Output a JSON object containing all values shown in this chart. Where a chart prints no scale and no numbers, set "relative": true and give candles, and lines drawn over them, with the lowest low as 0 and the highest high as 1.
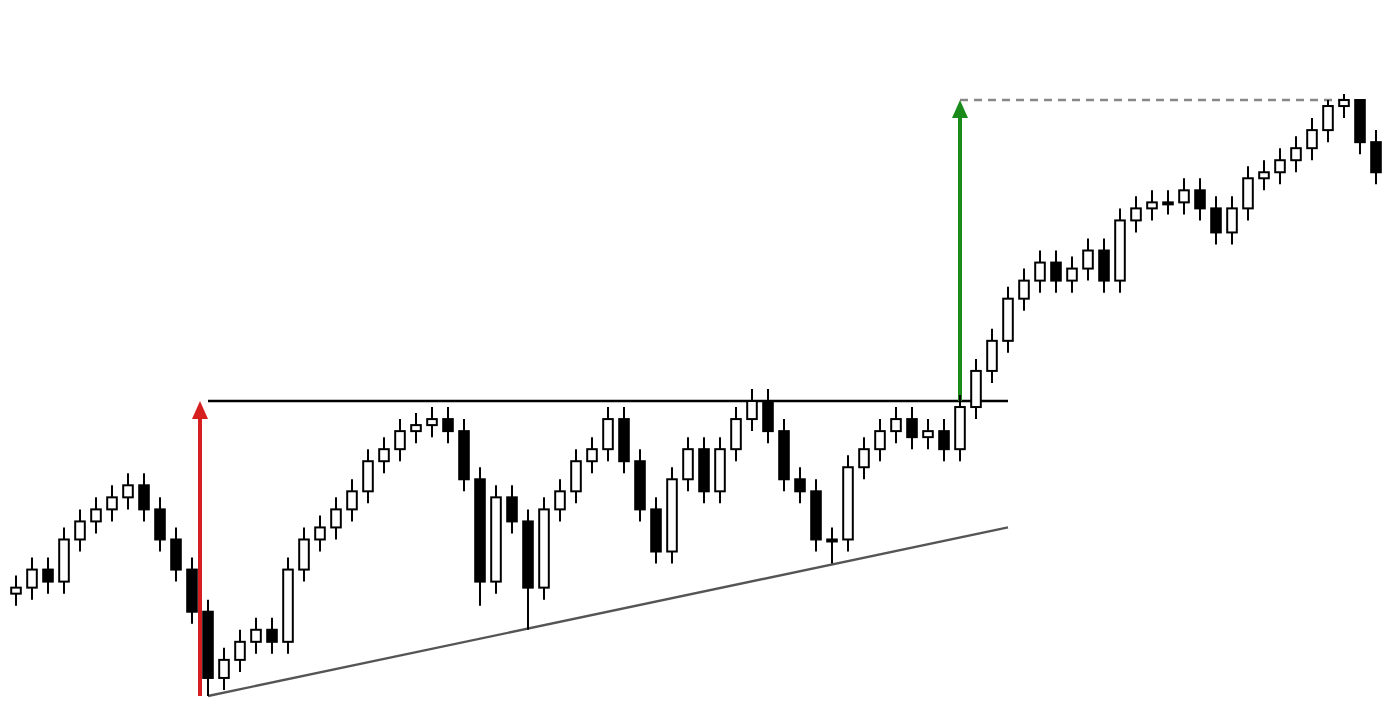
{
  "chart_data": {
    "type": "candlestick",
    "relative": true,
    "color": "#000000",
    "categories": [
      null,
      null,
      null,
      null,
      null,
      null,
      null,
      null,
      null,
      null,
      null,
      null,
      null,
      null,
      null,
      null,
      null,
      null,
      null,
      null,
      null,
      null,
      null,
      null,
      null,
      null,
      null,
      null,
      null,
      null,
      null,
      null,
      null,
      null,
      null,
      null,
      null,
      null,
      null,
      null,
      null,
      null,
      null,
      null,
      null,
      null,
      null,
      null,
      null,
      null,
      null,
      null,
      null,
      null,
      null,
      null,
      null,
      null,
      null,
      null,
      null,
      null,
      null,
      null,
      null,
      null,
      null,
      null,
      null,
      null,
      null,
      null,
      null,
      null,
      null,
      null,
      null,
      null,
      null,
      null,
      null,
      null,
      null,
      null,
      null,
      null
    ],
    "ohlc": [
      [
        0.17,
        0.2,
        0.15,
        0.18
      ],
      [
        0.18,
        0.23,
        0.16,
        0.21
      ],
      [
        0.21,
        0.23,
        0.17,
        0.19
      ],
      [
        0.19,
        0.28,
        0.17,
        0.26
      ],
      [
        0.26,
        0.31,
        0.24,
        0.29
      ],
      [
        0.29,
        0.33,
        0.27,
        0.31
      ],
      [
        0.31,
        0.35,
        0.29,
        0.33
      ],
      [
        0.33,
        0.37,
        0.31,
        0.35
      ],
      [
        0.35,
        0.37,
        0.29,
        0.31
      ],
      [
        0.31,
        0.33,
        0.24,
        0.26
      ],
      [
        0.26,
        0.28,
        0.19,
        0.21
      ],
      [
        0.21,
        0.23,
        0.12,
        0.14
      ],
      [
        0.14,
        0.16,
        0,
        0.03
      ],
      [
        0.03,
        0.08,
        0.01,
        0.06
      ],
      [
        0.06,
        0.11,
        0.04,
        0.09
      ],
      [
        0.09,
        0.13,
        0.07,
        0.11
      ],
      [
        0.11,
        0.13,
        0.07,
        0.09
      ],
      [
        0.09,
        0.23,
        0.07,
        0.21
      ],
      [
        0.21,
        0.28,
        0.19,
        0.26
      ],
      [
        0.26,
        0.3,
        0.24,
        0.28
      ],
      [
        0.28,
        0.33,
        0.26,
        0.31
      ],
      [
        0.31,
        0.36,
        0.29,
        0.34
      ],
      [
        0.34,
        0.41,
        0.32,
        0.39
      ],
      [
        0.39,
        0.43,
        0.37,
        0.41
      ],
      [
        0.41,
        0.46,
        0.39,
        0.44
      ],
      [
        0.44,
        0.47,
        0.42,
        0.45
      ],
      [
        0.45,
        0.48,
        0.43,
        0.46
      ],
      [
        0.46,
        0.48,
        0.42,
        0.44
      ],
      [
        0.44,
        0.46,
        0.34,
        0.36
      ],
      [
        0.36,
        0.38,
        0.15,
        0.19
      ],
      [
        0.19,
        0.35,
        0.17,
        0.33
      ],
      [
        0.33,
        0.35,
        0.27,
        0.29
      ],
      [
        0.29,
        0.31,
        0.11,
        0.18
      ],
      [
        0.18,
        0.33,
        0.16,
        0.31
      ],
      [
        0.31,
        0.36,
        0.29,
        0.34
      ],
      [
        0.34,
        0.41,
        0.32,
        0.39
      ],
      [
        0.39,
        0.43,
        0.37,
        0.41
      ],
      [
        0.41,
        0.48,
        0.39,
        0.46
      ],
      [
        0.46,
        0.48,
        0.37,
        0.39
      ],
      [
        0.39,
        0.41,
        0.29,
        0.31
      ],
      [
        0.31,
        0.33,
        0.22,
        0.24
      ],
      [
        0.24,
        0.38,
        0.22,
        0.36
      ],
      [
        0.36,
        0.43,
        0.34,
        0.41
      ],
      [
        0.41,
        0.43,
        0.32,
        0.34
      ],
      [
        0.34,
        0.43,
        0.32,
        0.41
      ],
      [
        0.41,
        0.48,
        0.39,
        0.46
      ],
      [
        0.46,
        0.51,
        0.44,
        0.49
      ],
      [
        0.49,
        0.51,
        0.42,
        0.44
      ],
      [
        0.44,
        0.46,
        0.34,
        0.36
      ],
      [
        0.36,
        0.38,
        0.32,
        0.34
      ],
      [
        0.34,
        0.36,
        0.24,
        0.26
      ],
      [
        0.26,
        0.28,
        0.22,
        0.26
      ],
      [
        0.26,
        0.4,
        0.24,
        0.38
      ],
      [
        0.38,
        0.43,
        0.36,
        0.41
      ],
      [
        0.41,
        0.46,
        0.39,
        0.44
      ],
      [
        0.44,
        0.48,
        0.42,
        0.46
      ],
      [
        0.46,
        0.48,
        0.41,
        0.43
      ],
      [
        0.43,
        0.46,
        0.41,
        0.44
      ],
      [
        0.44,
        0.46,
        0.39,
        0.41
      ],
      [
        0.41,
        0.5,
        0.39,
        0.48
      ],
      [
        0.48,
        0.56,
        0.46,
        0.54
      ],
      [
        0.54,
        0.61,
        0.52,
        0.59
      ],
      [
        0.59,
        0.68,
        0.57,
        0.66
      ],
      [
        0.66,
        0.71,
        0.64,
        0.69
      ],
      [
        0.69,
        0.74,
        0.67,
        0.72
      ],
      [
        0.72,
        0.74,
        0.67,
        0.69
      ],
      [
        0.69,
        0.73,
        0.67,
        0.71
      ],
      [
        0.71,
        0.76,
        0.69,
        0.74
      ],
      [
        0.74,
        0.76,
        0.67,
        0.69
      ],
      [
        0.69,
        0.81,
        0.67,
        0.79
      ],
      [
        0.79,
        0.83,
        0.77,
        0.81
      ],
      [
        0.81,
        0.84,
        0.79,
        0.82
      ],
      [
        0.82,
        0.84,
        0.8,
        0.82
      ],
      [
        0.82,
        0.86,
        0.8,
        0.84
      ],
      [
        0.84,
        0.86,
        0.79,
        0.81
      ],
      [
        0.81,
        0.83,
        0.75,
        0.77
      ],
      [
        0.77,
        0.83,
        0.75,
        0.81
      ],
      [
        0.81,
        0.88,
        0.79,
        0.86
      ],
      [
        0.86,
        0.89,
        0.84,
        0.87
      ],
      [
        0.87,
        0.91,
        0.85,
        0.89
      ],
      [
        0.89,
        0.93,
        0.87,
        0.91
      ],
      [
        0.91,
        0.96,
        0.89,
        0.94
      ],
      [
        0.94,
        0.99,
        0.92,
        0.98
      ],
      [
        0.98,
        1,
        0.96,
        0.99
      ],
      [
        0.99,
        0.99,
        0.9,
        0.92
      ],
      [
        0.92,
        0.94,
        0.85,
        0.87
      ]
    ],
    "series": [
      {
        "type": "line",
        "values": [
          null,
          null,
          null,
          null,
          null,
          null,
          null,
          null,
          null,
          null,
          null,
          null,
          0.49,
          null,
          null,
          null,
          null,
          null,
          null,
          null,
          null,
          null,
          null,
          null,
          null,
          null,
          null,
          null,
          null,
          null,
          null,
          null,
          null,
          null,
          null,
          null,
          null,
          null,
          null,
          null,
          null,
          null,
          null,
          null,
          null,
          null,
          null,
          null,
          null,
          null,
          null,
          null,
          null,
          null,
          null,
          null,
          null,
          null,
          null,
          null,
          null,
          null,
          0.49,
          null,
          null,
          null,
          null,
          null,
          null,
          null,
          null,
          null,
          null,
          null,
          null,
          null,
          null,
          null,
          null,
          null,
          null,
          null,
          null,
          null,
          null,
          null
        ],
        "color": "#000000"
      },
      {
        "type": "line",
        "values": [
          null,
          null,
          null,
          null,
          null,
          null,
          null,
          null,
          null,
          null,
          null,
          null,
          0,
          null,
          null,
          null,
          null,
          null,
          null,
          null,
          null,
          null,
          null,
          null,
          null,
          null,
          null,
          null,
          null,
          null,
          null,
          null,
          null,
          null,
          null,
          null,
          null,
          null,
          null,
          null,
          null,
          null,
          null,
          null,
          null,
          null,
          null,
          null,
          null,
          null,
          null,
          null,
          null,
          null,
          null,
          null,
          null,
          null,
          null,
          null,
          null,
          null,
          0.28,
          null,
          null,
          null,
          null,
          null,
          null,
          null,
          null,
          null,
          null,
          null,
          null,
          null,
          null,
          null,
          null,
          null,
          null,
          null,
          null,
          null,
          null,
          null
        ],
        "color": "#555555"
      },
      {
        "type": "line",
        "values": [
          null,
          null,
          null,
          null,
          null,
          null,
          null,
          null,
          null,
          null,
          null,
          null,
          null,
          null,
          null,
          null,
          null,
          null,
          null,
          null,
          null,
          null,
          null,
          null,
          null,
          null,
          null,
          null,
          null,
          null,
          null,
          null,
          null,
          null,
          null,
          null,
          null,
          null,
          null,
          null,
          null,
          null,
          null,
          null,
          null,
          null,
          null,
          null,
          null,
          null,
          null,
          null,
          null,
          null,
          null,
          null,
          null,
          null,
          null,
          0.99,
          null,
          null,
          null,
          null,
          null,
          null,
          null,
          null,
          null,
          null,
          null,
          null,
          null,
          null,
          null,
          null,
          null,
          null,
          null,
          null,
          null,
          null,
          null,
          0.99,
          null,
          null
        ],
        "color": "#888888",
        "line_style": "dashed"
      }
    ]
  }
}
